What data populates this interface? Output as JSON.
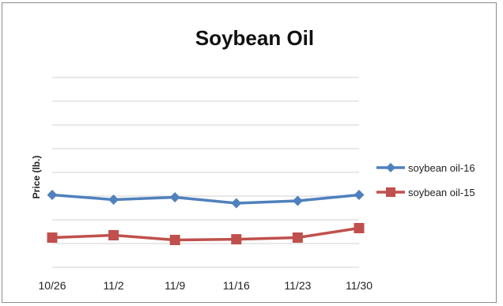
{
  "chart_data": {
    "type": "line",
    "title": "Soybean Oil",
    "xlabel": "",
    "ylabel": "Price (lb.)",
    "categories": [
      "10/26",
      "11/2",
      "11/9",
      "11/16",
      "11/23",
      "11/30"
    ],
    "ylim": [
      0,
      8
    ],
    "grid": true,
    "legend_position": "right",
    "series": [
      {
        "name": "soybean oil-16",
        "color": "#4f81bd",
        "marker": "diamond",
        "values": [
          3.05,
          2.85,
          2.95,
          2.7,
          2.8,
          3.05
        ]
      },
      {
        "name": "soybean oil-15",
        "color": "#c0504d",
        "marker": "square",
        "values": [
          1.25,
          1.35,
          1.15,
          1.18,
          1.25,
          1.65
        ]
      }
    ]
  }
}
